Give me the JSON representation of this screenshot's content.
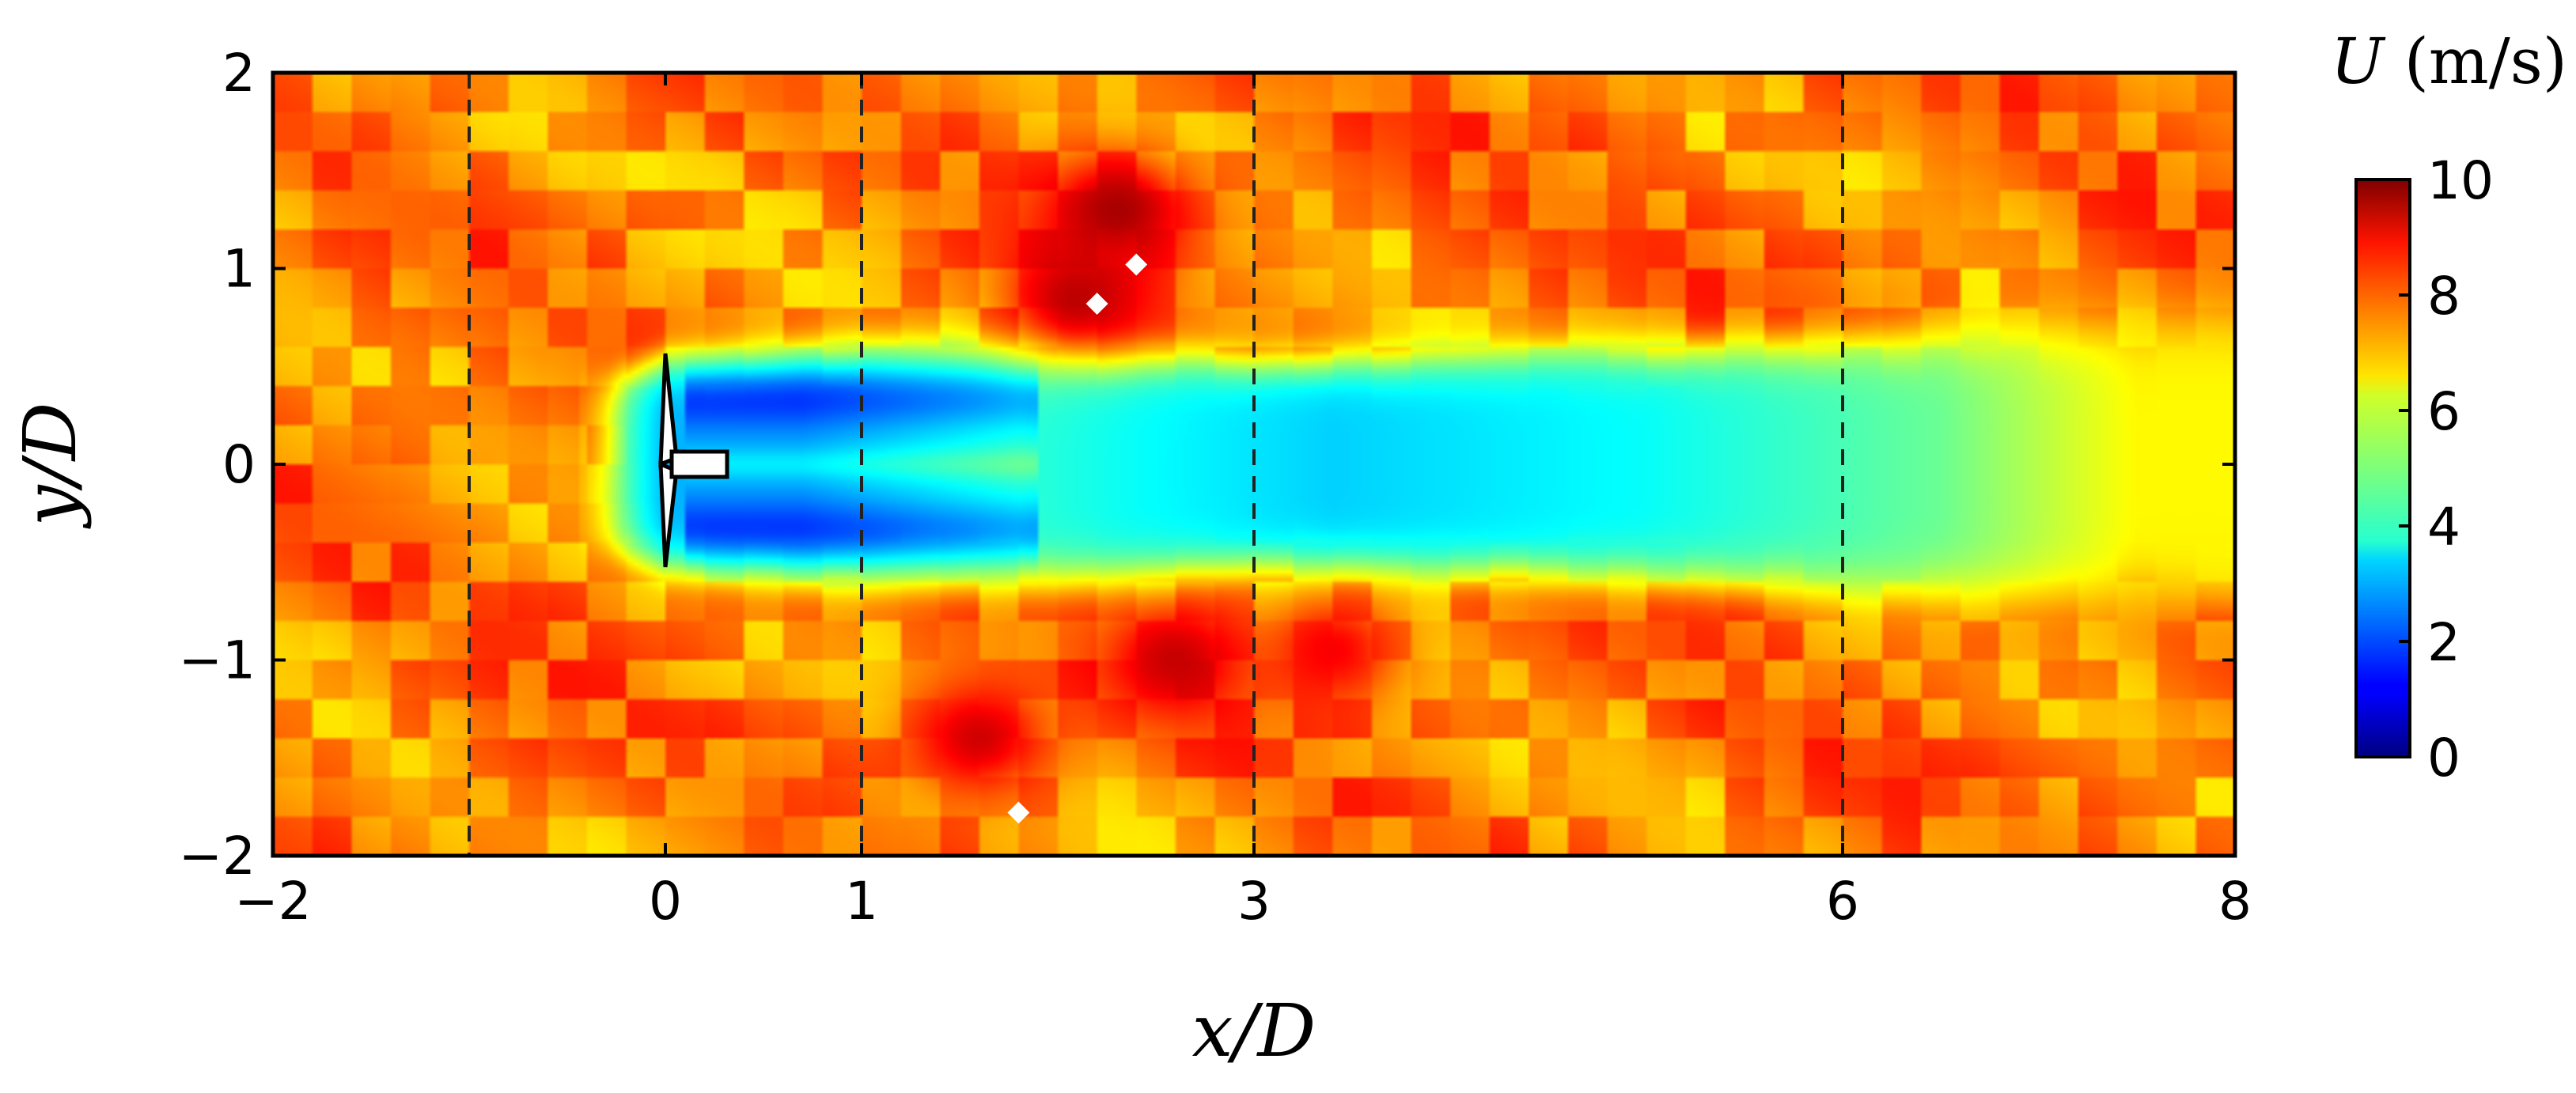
{
  "chart_data": {
    "type": "heatmap",
    "title": "",
    "xlabel": "x/D",
    "ylabel": "y/D",
    "xlim": [
      -2,
      8
    ],
    "ylim": [
      -2,
      2
    ],
    "x_ticks": [
      -2,
      0,
      1,
      3,
      6,
      8
    ],
    "x_tick_labels": [
      "−2",
      "0",
      "1",
      "3",
      "6",
      "8"
    ],
    "y_ticks": [
      -2,
      -1,
      0,
      1,
      2
    ],
    "y_tick_labels": [
      "−2",
      "−1",
      "0",
      "1",
      "2"
    ],
    "dashed_lines_x": [
      -1,
      1,
      3,
      6
    ],
    "grid": false,
    "colorbar": {
      "label_var": "U",
      "label_unit": " (m/s)",
      "min": 0,
      "max": 10,
      "ticks": [
        0,
        2,
        4,
        6,
        8,
        10
      ],
      "tick_labels": [
        "0",
        "2",
        "4",
        "6",
        "8",
        "10"
      ],
      "colormap": "jet"
    },
    "freestream_U": 7.5,
    "wake": {
      "centerline_deficit": [
        {
          "x": -0.3,
          "U": 4.8
        },
        {
          "x": 0.0,
          "U": 3.0
        },
        {
          "x": 0.7,
          "U": 3.0
        },
        {
          "x": 1.8,
          "U": 4.2
        },
        {
          "x": 2.4,
          "U": 3.8
        },
        {
          "x": 3.4,
          "U": 3.3
        },
        {
          "x": 5.0,
          "U": 3.8
        },
        {
          "x": 6.5,
          "U": 4.8
        },
        {
          "x": 7.5,
          "U": 6.3
        }
      ],
      "half_width": [
        {
          "x": -0.3,
          "w": 0.45
        },
        {
          "x": 0.0,
          "w": 0.55
        },
        {
          "x": 1.0,
          "w": 0.62
        },
        {
          "x": 2.0,
          "w": 0.62
        },
        {
          "x": 3.0,
          "w": 0.55
        },
        {
          "x": 5.0,
          "w": 0.6
        },
        {
          "x": 6.5,
          "w": 0.68
        },
        {
          "x": 8.0,
          "w": 0.75
        }
      ]
    },
    "high_speed_regions": [
      {
        "x": 2.3,
        "y": 1.3,
        "U": 9.6
      },
      {
        "x": 2.1,
        "y": 0.85,
        "U": 9.4
      },
      {
        "x": 2.6,
        "y": -1.0,
        "U": 9.3
      },
      {
        "x": 3.4,
        "y": -0.95,
        "U": 8.8
      },
      {
        "x": 1.6,
        "y": -1.4,
        "U": 9.2
      }
    ],
    "missing_data_points": [
      {
        "x": 2.4,
        "y": 1.02
      },
      {
        "x": 2.2,
        "y": 0.82
      },
      {
        "x": 1.8,
        "y": -1.78
      }
    ],
    "turbine": {
      "x": 0,
      "y": 0
    }
  }
}
